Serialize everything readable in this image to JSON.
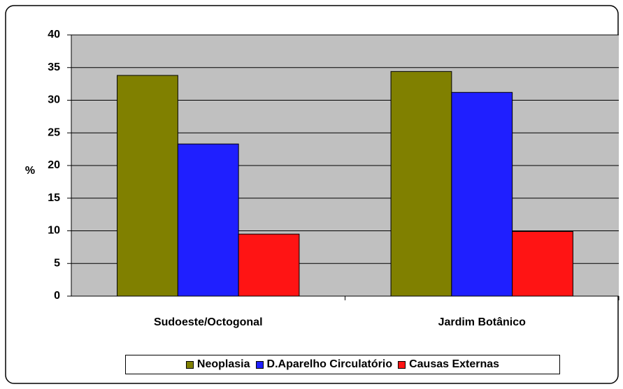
{
  "chart_data": {
    "type": "bar",
    "y_label": "%",
    "categories": [
      "Sudoeste/Octogonal",
      "Jardim Botânico"
    ],
    "series": [
      {
        "name": "Neoplasia",
        "color": "#808000",
        "values": [
          33.8,
          34.4
        ]
      },
      {
        "name": "D.Aparelho Circulatório",
        "color": "#1f1fff",
        "values": [
          23.3,
          31.2
        ]
      },
      {
        "name": "Causas Externas",
        "color": "#ff1414",
        "values": [
          9.5,
          9.9
        ]
      }
    ],
    "ylim": [
      0,
      40
    ],
    "yticks": [
      0,
      5,
      10,
      15,
      20,
      25,
      30,
      35,
      40
    ],
    "grid": true,
    "plot_background": "#c0c0c0",
    "legend": "bottom"
  }
}
